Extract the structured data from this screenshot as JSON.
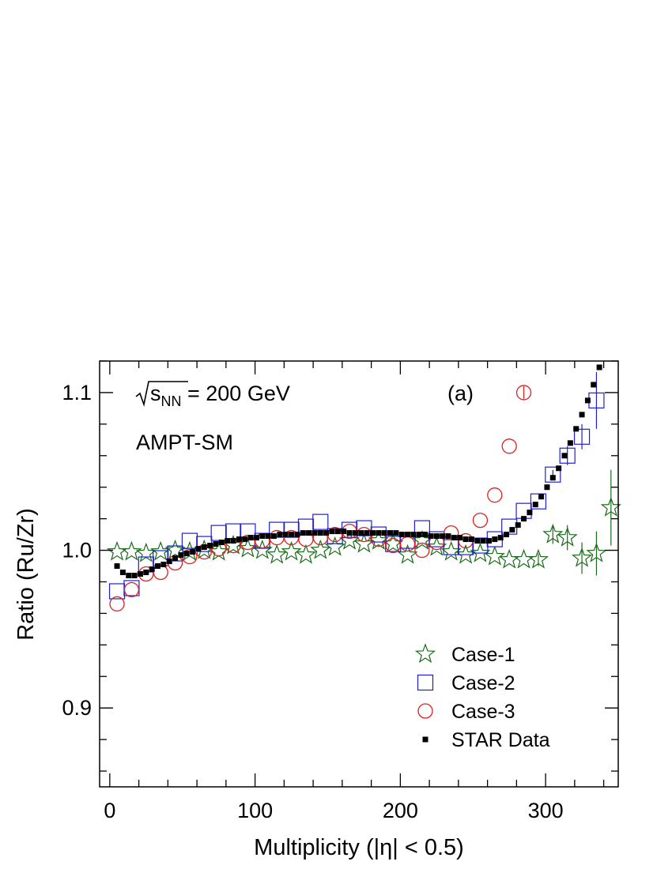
{
  "chart_data": {
    "type": "scatter",
    "xlabel": "Multiplicity (|η| < 0.5)",
    "ylabel": "Ratio (Ru/Zr)",
    "xlim": [
      -7,
      350
    ],
    "ylim": [
      0.85,
      1.12
    ],
    "x_ticks": [
      "0",
      "100",
      "200",
      "300"
    ],
    "y_ticks": [
      "0.9",
      "1.0",
      "1.1"
    ],
    "annotations": {
      "energy_prefix": "s",
      "energy_sub": "NN",
      "energy_value": " = 200 GeV",
      "model": "AMPT-SM",
      "panel": "(a)"
    },
    "legend_position": "bottom-right",
    "series": [
      {
        "name": "Case-1",
        "marker": "star",
        "color": "#1a6b1a",
        "x": [
          5,
          15,
          25,
          35,
          45,
          55,
          65,
          75,
          85,
          95,
          105,
          115,
          125,
          135,
          145,
          155,
          165,
          175,
          185,
          195,
          205,
          215,
          225,
          235,
          245,
          255,
          265,
          275,
          285,
          295,
          305,
          315,
          325,
          335,
          345
        ],
        "y": [
          0.999,
          0.999,
          0.998,
          0.999,
          1.0,
          0.999,
          1.0,
          0.999,
          1.003,
          1.001,
          1.0,
          0.997,
          0.999,
          0.997,
          1.0,
          1.002,
          1.006,
          1.004,
          1.006,
          1.004,
          0.997,
          1.006,
          1.002,
          0.999,
          0.997,
          0.998,
          0.996,
          0.994,
          0.994,
          0.994,
          1.01,
          1.008,
          0.995,
          0.998,
          1.027
        ],
        "err": [
          0,
          0,
          0,
          0,
          0,
          0,
          0,
          0,
          0,
          0,
          0,
          0,
          0,
          0,
          0,
          0,
          0,
          0,
          0,
          0,
          0,
          0,
          0,
          0,
          0,
          0,
          0,
          0,
          0,
          0.004,
          0.006,
          0.008,
          0.01,
          0.014,
          0.024
        ]
      },
      {
        "name": "Case-2",
        "marker": "open-square",
        "color": "#1f1fdb",
        "x": [
          5,
          15,
          25,
          35,
          45,
          55,
          65,
          75,
          85,
          95,
          105,
          115,
          125,
          135,
          145,
          155,
          165,
          175,
          185,
          195,
          205,
          215,
          225,
          235,
          245,
          255,
          265,
          275,
          285,
          295,
          305,
          315,
          325,
          335
        ],
        "y": [
          0.974,
          0.976,
          0.991,
          0.995,
          0.998,
          1.006,
          1.004,
          1.011,
          1.012,
          1.012,
          1.006,
          1.013,
          1.013,
          1.015,
          1.018,
          1.009,
          1.013,
          1.014,
          1.01,
          1.004,
          1.006,
          1.014,
          1.007,
          1.002,
          1.002,
          1.003,
          1.007,
          1.015,
          1.025,
          1.031,
          1.048,
          1.06,
          1.072,
          1.095
        ],
        "err": [
          0,
          0,
          0,
          0,
          0,
          0,
          0,
          0,
          0,
          0,
          0,
          0,
          0,
          0,
          0,
          0,
          0,
          0,
          0,
          0,
          0,
          0,
          0,
          0,
          0,
          0,
          0,
          0,
          0,
          0,
          0.003,
          0.006,
          0.008,
          0.018
        ]
      },
      {
        "name": "Case-3",
        "marker": "open-circle",
        "color": "#e01f1f",
        "x": [
          5,
          15,
          25,
          35,
          45,
          55,
          65,
          75,
          85,
          95,
          105,
          115,
          125,
          135,
          145,
          155,
          165,
          175,
          185,
          195,
          205,
          215,
          225,
          235,
          245,
          255,
          265,
          275,
          285
        ],
        "y": [
          0.966,
          0.975,
          0.985,
          0.986,
          0.992,
          0.996,
          0.999,
          1.001,
          1.003,
          1.005,
          1.006,
          1.008,
          1.008,
          1.007,
          1.008,
          1.01,
          1.012,
          1.01,
          1.007,
          1.003,
          1.004,
          1.0,
          1.005,
          1.011,
          1.006,
          1.019,
          1.035,
          1.066,
          1.1
        ],
        "err": [
          0,
          0,
          0,
          0,
          0,
          0,
          0,
          0,
          0,
          0,
          0,
          0,
          0,
          0,
          0,
          0,
          0,
          0,
          0,
          0,
          0,
          0,
          0,
          0,
          0,
          0,
          0,
          0,
          0.004
        ]
      },
      {
        "name": "STAR Data",
        "marker": "filled-square",
        "color": "#000000",
        "x": [
          5,
          9,
          13,
          17,
          21,
          25,
          29,
          33,
          37,
          41,
          45,
          49,
          53,
          57,
          61,
          65,
          69,
          73,
          77,
          81,
          85,
          89,
          93,
          97,
          101,
          105,
          109,
          113,
          117,
          121,
          125,
          129,
          133,
          137,
          141,
          145,
          149,
          153,
          157,
          161,
          165,
          169,
          173,
          177,
          181,
          185,
          189,
          193,
          197,
          201,
          205,
          209,
          213,
          217,
          221,
          225,
          229,
          233,
          237,
          241,
          245,
          249,
          253,
          257,
          261,
          265,
          269,
          273,
          277,
          281,
          285,
          289,
          293,
          297,
          301,
          305,
          309,
          313,
          317,
          321,
          325,
          329,
          333,
          337
        ],
        "y": [
          0.99,
          0.986,
          0.984,
          0.984,
          0.985,
          0.986,
          0.988,
          0.99,
          0.991,
          0.993,
          0.995,
          0.997,
          0.998,
          0.999,
          1.001,
          1.002,
          1.003,
          1.004,
          1.005,
          1.006,
          1.006,
          1.007,
          1.007,
          1.008,
          1.008,
          1.009,
          1.009,
          1.009,
          1.01,
          1.01,
          1.01,
          1.01,
          1.011,
          1.011,
          1.011,
          1.011,
          1.011,
          1.012,
          1.012,
          1.012,
          1.011,
          1.011,
          1.011,
          1.011,
          1.011,
          1.011,
          1.011,
          1.011,
          1.011,
          1.01,
          1.01,
          1.01,
          1.01,
          1.01,
          1.009,
          1.009,
          1.009,
          1.009,
          1.008,
          1.008,
          1.007,
          1.007,
          1.006,
          1.006,
          1.006,
          1.007,
          1.008,
          1.01,
          1.013,
          1.016,
          1.02,
          1.024,
          1.029,
          1.034,
          1.04,
          1.046,
          1.052,
          1.06,
          1.068,
          1.077,
          1.086,
          1.095,
          1.105,
          1.116
        ]
      }
    ]
  }
}
